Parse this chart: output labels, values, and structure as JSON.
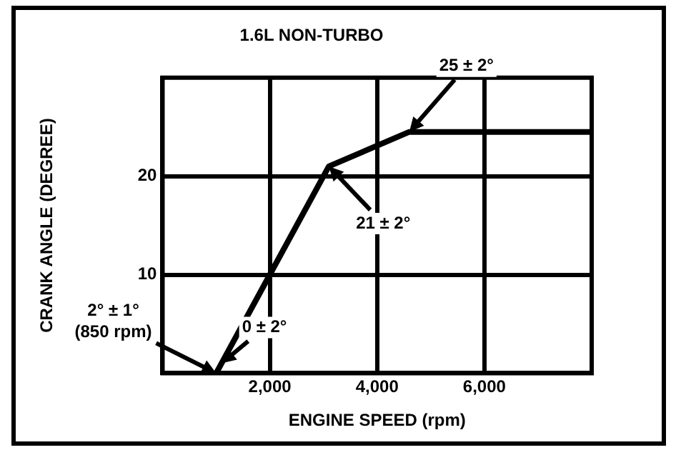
{
  "chart_data": {
    "type": "line",
    "title": "1.6L NON-TURBO",
    "xlabel": "ENGINE SPEED (rpm)",
    "ylabel": "CRANK ANGLE (DEGREE)",
    "x": [
      1000,
      2000,
      3100,
      4600,
      8000
    ],
    "series": [
      {
        "color": "#000000",
        "values": [
          0,
          10,
          21,
          24.5,
          24.5
        ]
      }
    ],
    "xlim": [
      0,
      8000
    ],
    "xticks": [
      {
        "value": 2000,
        "label": "2,000"
      },
      {
        "value": 4000,
        "label": "4,000"
      },
      {
        "value": 6000,
        "label": "6,000"
      }
    ],
    "ylim": [
      0,
      30
    ],
    "yticks": [
      10,
      20
    ],
    "grid": true,
    "legend": false,
    "marker": "none",
    "line_style": "solid",
    "annotations": [
      {
        "text": "25 ± 2°",
        "x": 4600,
        "y": 24.5
      },
      {
        "text": "21 ± 2°",
        "x": 3100,
        "y": 21
      },
      {
        "text": "0 ± 2°",
        "x": 1100,
        "y": 1
      },
      {
        "text": "2° ± 1°\n(850 rpm)",
        "x": 1000,
        "y": 0
      }
    ]
  }
}
